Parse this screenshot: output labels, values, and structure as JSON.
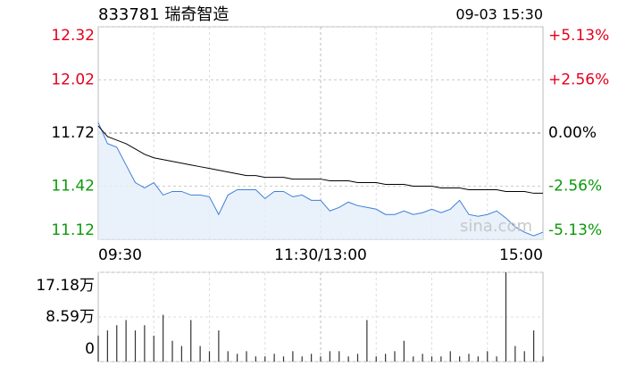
{
  "chart_data": [
    {
      "type": "line",
      "title": "833781 瑞奇智造",
      "subtitle": "09-03 15:30",
      "annotation": "sina.com",
      "x": [
        0,
        5,
        10,
        15,
        20,
        25,
        30,
        35,
        40,
        45,
        50,
        55,
        60,
        65,
        70,
        75,
        80,
        85,
        90,
        95,
        100,
        105,
        110,
        115,
        120,
        125,
        130,
        135,
        140,
        145,
        150,
        155,
        160,
        165,
        170,
        175,
        180,
        185,
        190,
        195,
        200,
        205,
        210,
        215,
        220,
        225,
        230,
        235,
        240
      ],
      "series": [
        {
          "color": "#3f7fd8",
          "fill": "#e3edfa",
          "values": [
            11.78,
            11.66,
            11.64,
            11.54,
            11.44,
            11.41,
            11.44,
            11.37,
            11.39,
            11.39,
            11.37,
            11.37,
            11.36,
            11.26,
            11.37,
            11.4,
            11.4,
            11.4,
            11.35,
            11.39,
            11.39,
            11.36,
            11.37,
            11.34,
            11.34,
            11.28,
            11.3,
            11.33,
            11.31,
            11.3,
            11.29,
            11.26,
            11.26,
            11.28,
            11.26,
            11.27,
            11.29,
            11.27,
            11.29,
            11.34,
            11.26,
            11.25,
            11.26,
            11.28,
            11.24,
            11.19,
            11.16,
            11.14,
            11.16
          ]
        },
        {
          "color": "#000000",
          "values": [
            11.76,
            11.7,
            11.68,
            11.66,
            11.63,
            11.6,
            11.58,
            11.57,
            11.56,
            11.55,
            11.54,
            11.53,
            11.52,
            11.51,
            11.5,
            11.49,
            11.48,
            11.48,
            11.47,
            11.47,
            11.47,
            11.46,
            11.46,
            11.46,
            11.46,
            11.45,
            11.45,
            11.45,
            11.44,
            11.44,
            11.44,
            11.43,
            11.43,
            11.43,
            11.42,
            11.42,
            11.42,
            11.41,
            11.41,
            11.41,
            11.4,
            11.4,
            11.4,
            11.4,
            11.39,
            11.39,
            11.39,
            11.38,
            11.38
          ]
        }
      ],
      "xlim": [
        0,
        240
      ],
      "xticks": [
        {
          "value": 0,
          "label": "09:30"
        },
        {
          "value": 120,
          "label": "11:30/13:00"
        },
        {
          "value": 240,
          "label": "15:00"
        }
      ],
      "ylim": [
        11.12,
        12.32
      ],
      "yticks": [
        12.32,
        12.02,
        11.72,
        11.42,
        11.12
      ],
      "y2lim": [
        -5.13,
        5.13
      ],
      "y2ticks": [
        {
          "value": 5.13,
          "label": "+5.13%"
        },
        {
          "value": 2.56,
          "label": "+2.56%"
        },
        {
          "value": 0,
          "label": "0.00%"
        },
        {
          "value": -2.56,
          "label": "-2.56%"
        },
        {
          "value": -5.13,
          "label": "-5.13%"
        }
      ],
      "colors": {
        "up": "#e4001b",
        "down": "#0a9a0a",
        "flat": "#000000"
      },
      "grid": true
    },
    {
      "type": "bar",
      "color": "#333333",
      "x": [
        0,
        5,
        10,
        15,
        20,
        25,
        30,
        35,
        40,
        45,
        50,
        55,
        60,
        65,
        70,
        75,
        80,
        85,
        90,
        95,
        100,
        105,
        110,
        115,
        120,
        125,
        130,
        135,
        140,
        145,
        150,
        155,
        160,
        165,
        170,
        175,
        180,
        185,
        190,
        195,
        200,
        205,
        210,
        215,
        220,
        225,
        230,
        235,
        240
      ],
      "values": [
        5,
        6,
        7,
        8,
        6,
        7,
        5,
        9,
        4,
        3,
        8,
        3,
        2,
        6,
        2,
        1.5,
        2,
        1,
        1,
        1.5,
        1,
        2,
        1,
        1.5,
        1,
        2,
        2,
        1,
        1.5,
        8,
        1,
        1.5,
        2,
        4,
        1,
        1.5,
        1,
        1,
        2,
        1,
        1.5,
        1,
        2,
        1,
        17.18,
        3,
        2,
        6,
        1
      ],
      "xlim": [
        0,
        240
      ],
      "ylim": [
        0,
        17.18
      ],
      "yticks": [
        {
          "value": 17.18,
          "label": "17.18万"
        },
        {
          "value": 8.59,
          "label": "8.59万"
        },
        0
      ],
      "grid": true
    }
  ]
}
